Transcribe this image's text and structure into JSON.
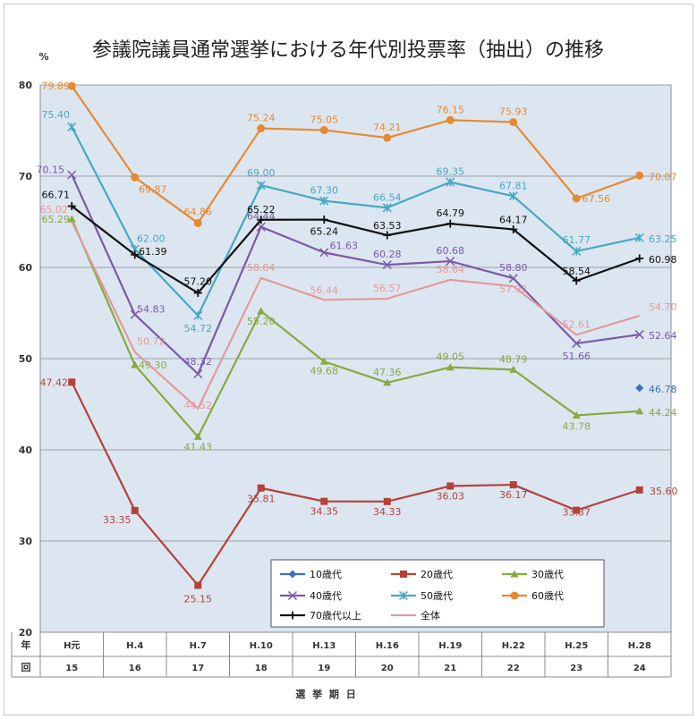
{
  "chart_data": {
    "type": "line",
    "title": "参議院議員通常選挙における年代別投票率（抽出）の推移",
    "ylabel": "%",
    "xlabel": "選 挙 期 日",
    "ylim": [
      20,
      80
    ],
    "yticks": [
      "20",
      "30",
      "40",
      "50",
      "60",
      "70",
      "80"
    ],
    "row_label_year": "年",
    "row_label_session": "回",
    "categories": [
      "H元",
      "H.4",
      "H.7",
      "H.10",
      "H.13",
      "H.16",
      "H.19",
      "H.22",
      "H.25",
      "H.28"
    ],
    "sessions": [
      "15",
      "16",
      "17",
      "18",
      "19",
      "20",
      "21",
      "22",
      "23",
      "24"
    ],
    "grid": true,
    "legend_position": "bottom-right",
    "series": [
      {
        "name": "10歳代",
        "color": "#3f6fb5",
        "marker": "diamond",
        "values": [
          null,
          null,
          null,
          null,
          null,
          null,
          null,
          null,
          null,
          46.78
        ],
        "labels": [
          null,
          null,
          null,
          null,
          null,
          null,
          null,
          null,
          null,
          "46.78"
        ]
      },
      {
        "name": "20歳代",
        "color": "#b5413b",
        "marker": "square",
        "values": [
          47.42,
          33.35,
          25.15,
          35.81,
          34.35,
          34.33,
          36.03,
          36.17,
          33.37,
          35.6
        ],
        "labels": [
          "47.42",
          "33.35",
          "25.15",
          "35.81",
          "34.35",
          "34.33",
          "36.03",
          "36.17",
          "33.37",
          "35.60"
        ]
      },
      {
        "name": "30歳代",
        "color": "#86aa3f",
        "marker": "triangle",
        "values": [
          65.29,
          49.3,
          41.43,
          55.2,
          49.68,
          47.36,
          49.05,
          48.79,
          43.78,
          44.24
        ],
        "labels": [
          "65.29",
          "49.30",
          "41.43",
          "55.20",
          "49.68",
          "47.36",
          "49.05",
          "48.79",
          "43.78",
          "44.24"
        ]
      },
      {
        "name": "40歳代",
        "color": "#7a5aa6",
        "marker": "x",
        "values": [
          70.15,
          54.83,
          48.32,
          64.44,
          61.63,
          60.28,
          60.68,
          58.8,
          51.66,
          52.64
        ],
        "labels": [
          "70.15",
          "54.83",
          "48.32",
          "64.44",
          "61.63",
          "60.28",
          "60.68",
          "58.80",
          "51.66",
          "52.64"
        ]
      },
      {
        "name": "50歳代",
        "color": "#46a8c2",
        "marker": "star",
        "values": [
          75.4,
          62.0,
          54.72,
          69.0,
          67.3,
          66.54,
          69.35,
          67.81,
          61.77,
          63.25
        ],
        "labels": [
          "75.40",
          "62.00",
          "54.72",
          "69.00",
          "67.30",
          "66.54",
          "69.35",
          "67.81",
          "61.77",
          "63.25"
        ]
      },
      {
        "name": "60歳代",
        "color": "#e68a32",
        "marker": "circle",
        "values": [
          79.89,
          69.87,
          64.86,
          75.24,
          75.05,
          74.21,
          76.15,
          75.93,
          67.56,
          70.07
        ],
        "labels": [
          "79.89",
          "69.87",
          "64.86",
          "75.24",
          "75.05",
          "74.21",
          "76.15",
          "75.93",
          "67.56",
          "70.07"
        ]
      },
      {
        "name": "70歳代以上",
        "color": "#111111",
        "marker": "plus",
        "values": [
          66.71,
          61.39,
          57.2,
          65.22,
          65.24,
          63.53,
          64.79,
          64.17,
          58.54,
          60.98
        ],
        "labels": [
          "66.71",
          "61.39",
          "57.20",
          "65.22",
          "65.24",
          "63.53",
          "64.79",
          "64.17",
          "58.54",
          "60.98"
        ]
      },
      {
        "name": "全体",
        "color": "#e39a9a",
        "marker": "none",
        "values": [
          65.02,
          50.72,
          44.52,
          58.84,
          56.44,
          56.57,
          58.64,
          57.92,
          52.61,
          54.7
        ],
        "labels": [
          "65.02",
          "50.72",
          "44.52",
          "58.84",
          "56.44",
          "56.57",
          "58.64",
          "57.92",
          "52.61",
          "54.70"
        ]
      }
    ]
  }
}
